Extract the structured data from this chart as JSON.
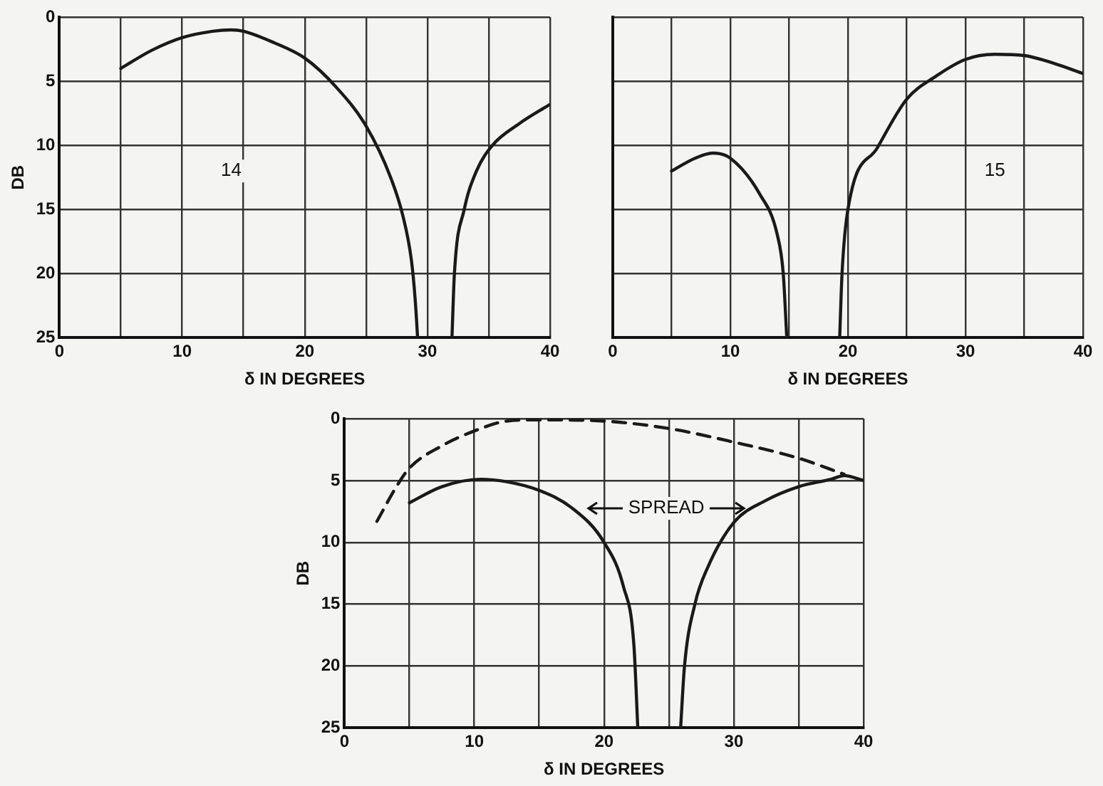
{
  "chart_data": [
    {
      "type": "line",
      "xlabel": "δ IN DEGREES",
      "ylabel": "DB",
      "xlim": [
        0,
        40
      ],
      "ylim": [
        25,
        0
      ],
      "xticks": [
        0,
        {
          "value": 5,
          "label": null
        },
        10,
        {
          "value": 15,
          "label": null
        },
        20,
        {
          "value": 25,
          "label": null
        },
        30,
        {
          "value": 35,
          "label": null
        },
        40
      ],
      "yticks": [
        0,
        5,
        10,
        15,
        20,
        25
      ],
      "grid": true,
      "marker": "none",
      "line_style": "solid",
      "annotations": [
        {
          "text": "14",
          "x": 14,
          "y": 12
        }
      ],
      "series": [
        {
          "color": "#1a1a1a",
          "x": [
            5,
            7.5,
            10,
            12.5,
            14,
            15,
            17.5,
            20,
            22.5,
            25,
            27,
            28,
            28.7,
            29,
            29.2
          ],
          "values": [
            4,
            2.6,
            1.6,
            1.1,
            1,
            1.1,
            2,
            3.2,
            5.4,
            8.5,
            12.5,
            15.5,
            19,
            22,
            25
          ]
        },
        {
          "color": "#1a1a1a",
          "x": [
            32,
            32.2,
            33,
            34,
            35.3,
            37.5,
            40
          ],
          "values": [
            25,
            20,
            15,
            12,
            10,
            8.3,
            6.8
          ]
        }
      ]
    },
    {
      "type": "line",
      "xlabel": "δ IN DEGREES",
      "xlim": [
        0,
        40
      ],
      "ylim": [
        25,
        0
      ],
      "tick_labels": "x",
      "xticks": [
        0,
        {
          "value": 5,
          "label": null
        },
        10,
        {
          "value": 15,
          "label": null
        },
        20,
        {
          "value": 25,
          "label": null
        },
        30,
        {
          "value": 35,
          "label": null
        },
        40
      ],
      "yticks": [
        {
          "value": 0,
          "label": null
        },
        {
          "value": 5,
          "label": null
        },
        {
          "value": 10,
          "label": null
        },
        {
          "value": 15,
          "label": null
        },
        {
          "value": 20,
          "label": null
        },
        {
          "value": 25,
          "label": null
        }
      ],
      "grid": true,
      "marker": "none",
      "line_style": "solid",
      "annotations": [
        {
          "text": "15",
          "x": 32.5,
          "y": 12
        }
      ],
      "series": [
        {
          "color": "#1a1a1a",
          "x": [
            5,
            7,
            8.5,
            10,
            12.5,
            14,
            14.5,
            14.8
          ],
          "values": [
            12,
            11,
            10.6,
            11,
            13.8,
            17,
            20,
            25
          ]
        },
        {
          "color": "#1a1a1a",
          "x": [
            19.3,
            19.5,
            20,
            22.5,
            25,
            27.5,
            30,
            32.5,
            35,
            37.5,
            40
          ],
          "values": [
            25,
            20,
            15,
            10.2,
            6.4,
            4.6,
            3.3,
            2.9,
            3,
            3.6,
            4.4
          ]
        }
      ]
    },
    {
      "type": "line",
      "xlabel": "δ IN DEGREES",
      "ylabel": "DB",
      "xlim": [
        0,
        40
      ],
      "ylim": [
        25,
        0
      ],
      "xticks": [
        0,
        {
          "value": 5,
          "label": null
        },
        10,
        {
          "value": 15,
          "label": null
        },
        20,
        {
          "value": 25,
          "label": null
        },
        30,
        {
          "value": 35,
          "label": null
        },
        40
      ],
      "yticks": [
        0,
        5,
        10,
        15,
        20,
        25
      ],
      "grid": true,
      "marker": "none",
      "line_style": "solid",
      "annotations": [
        "SPREAD"
      ],
      "series": [
        {
          "color": "#1a1a1a",
          "x": [
            5,
            7.5,
            10.5,
            12.5,
            15,
            17.5,
            20,
            21.5,
            22.3,
            22.6
          ],
          "values": [
            6.8,
            5.5,
            4.9,
            5.1,
            5.8,
            7.2,
            10,
            13.6,
            18.3,
            25
          ]
        },
        {
          "color": "#1a1a1a",
          "x": [
            25.9,
            26.2,
            27,
            28,
            30,
            32.5,
            35,
            37.5,
            38.5,
            40
          ],
          "values": [
            25,
            20,
            15,
            12,
            8.4,
            6.6,
            5.5,
            4.9,
            4.6,
            5
          ]
        },
        {
          "color": "#1a1a1a",
          "line_style": "dashed",
          "x": [
            2.5,
            4,
            5,
            7.5,
            10,
            12.5,
            15,
            20,
            25,
            30,
            35,
            38.5
          ],
          "values": [
            8.3,
            5.5,
            4,
            2.2,
            1,
            0.2,
            0.1,
            0.2,
            0.8,
            1.9,
            3.2,
            4.5
          ]
        }
      ]
    }
  ]
}
